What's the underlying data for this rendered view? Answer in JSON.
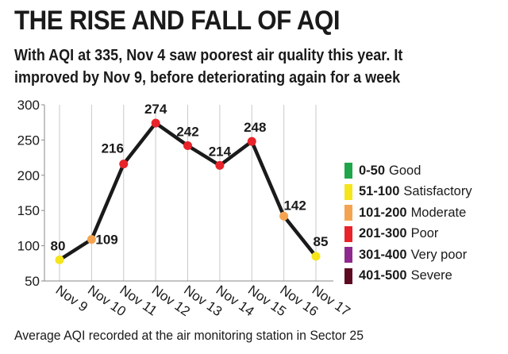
{
  "header": {
    "title": "THE RISE AND FALL OF AQI",
    "subtitle_line1": "With AQI at 335, Nov 4 saw poorest air quality this year. It",
    "subtitle_line2": "improved by Nov 9, before deteriorating again for a week"
  },
  "chart_data": {
    "type": "line",
    "title": "THE RISE AND FALL OF AQI",
    "categories": [
      "Nov 9",
      "Nov 10",
      "Nov 11",
      "Nov 12",
      "Nov 13",
      "Nov 14",
      "Nov 15",
      "Nov 16",
      "Nov 17"
    ],
    "values": [
      80,
      109,
      216,
      274,
      242,
      214,
      248,
      142,
      85
    ],
    "point_colors": [
      "#f5e51b",
      "#f4a451",
      "#e8232a",
      "#e8232a",
      "#e8232a",
      "#e8232a",
      "#e8232a",
      "#f4a451",
      "#f5e51b"
    ],
    "yticks": [
      50,
      100,
      150,
      200,
      250,
      300
    ],
    "ylim": [
      50,
      300
    ],
    "grid": "vertical lines at each category",
    "legend_position": "right",
    "line_color": "#1a1a1a",
    "grid_color": "#c9c9c9"
  },
  "legend": [
    {
      "range": "0-50",
      "label": "Good",
      "color": "#1fa64a"
    },
    {
      "range": "51-100",
      "label": "Satisfactory",
      "color": "#f5e51b"
    },
    {
      "range": "101-200",
      "label": "Moderate",
      "color": "#f4a451"
    },
    {
      "range": "201-300",
      "label": "Poor",
      "color": "#e8232a"
    },
    {
      "range": "301-400",
      "label": "Very poor",
      "color": "#8e2a8e"
    },
    {
      "range": "401-500",
      "label": "Severe",
      "color": "#5b0a22"
    }
  ],
  "footnote": "Average AQI recorded at the air monitoring station in Sector 25"
}
